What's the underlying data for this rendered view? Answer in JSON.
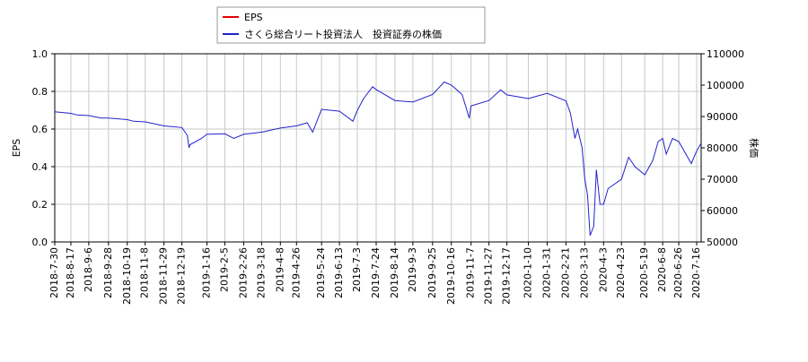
{
  "chart_data": {
    "type": "line",
    "y_label": "EPS",
    "y2_label": "株価",
    "x": [
      "2018-7-30",
      "2018-8-17",
      "2018-8-24",
      "2018-9-6",
      "2018-9-20",
      "2018-9-28",
      "2018-10-19",
      "2018-10-26",
      "2018-11-8",
      "2018-11-29",
      "2018-12-19",
      "2018-12-25",
      "2018-12-27",
      "2018-12-28",
      "2019-1-10",
      "2019-1-16",
      "2019-2-5",
      "2019-2-15",
      "2019-2-26",
      "2019-3-18",
      "2019-4-8",
      "2019-4-26",
      "2019-5-8",
      "2019-5-14",
      "2019-5-24",
      "2019-6-13",
      "2019-6-28",
      "2019-7-3",
      "2019-7-10",
      "2019-7-20",
      "2019-7-24",
      "2019-8-14",
      "2019-9-3",
      "2019-9-25",
      "2019-10-8",
      "2019-10-16",
      "2019-10-28",
      "2019-11-5",
      "2019-11-7",
      "2019-11-27",
      "2019-12-10",
      "2019-12-17",
      "2020-1-10",
      "2020-1-31",
      "2020-2-21",
      "2020-2-26",
      "2020-3-2",
      "2020-3-5",
      "2020-3-10",
      "2020-3-13",
      "2020-3-16",
      "2020-3-19",
      "2020-3-23",
      "2020-3-26",
      "2020-3-30",
      "2020-4-3",
      "2020-4-8",
      "2020-4-23",
      "2020-5-1",
      "2020-5-8",
      "2020-5-19",
      "2020-5-28",
      "2020-6-3",
      "2020-6-8",
      "2020-6-12",
      "2020-6-19",
      "2020-6-26",
      "2020-7-6",
      "2020-7-10",
      "2020-7-16",
      "2020-7-21"
    ],
    "series": [
      {
        "name": "EPS",
        "color": "#e00000",
        "axis": "y",
        "values": [
          null,
          null,
          null,
          null,
          null,
          null,
          null,
          null,
          null,
          null,
          null,
          null,
          null,
          null,
          null,
          null,
          null,
          null,
          null,
          null,
          null,
          null,
          null,
          null,
          null,
          null,
          null,
          null,
          null,
          null,
          null,
          null,
          null,
          null,
          null,
          null,
          null,
          null,
          null,
          null,
          null,
          null,
          null,
          null,
          null,
          null,
          null,
          null,
          null,
          null,
          null,
          null,
          null,
          null,
          null,
          null,
          null,
          null,
          null,
          null,
          null,
          null,
          null,
          null,
          null,
          null,
          null,
          null,
          null,
          null,
          null
        ]
      },
      {
        "name": "さくら総合リート投資法人　投資証券の株価",
        "color": "#2222cc",
        "axis": "y2",
        "values": [
          91500,
          91000,
          90500,
          90300,
          89500,
          89500,
          89000,
          88500,
          88300,
          87000,
          86500,
          84000,
          80000,
          81000,
          83000,
          84300,
          84500,
          83000,
          84300,
          85000,
          86300,
          87000,
          88000,
          85000,
          92300,
          91700,
          88500,
          92000,
          95700,
          99500,
          98600,
          95100,
          94600,
          97000,
          101000,
          100000,
          97000,
          89500,
          93400,
          95100,
          98500,
          96900,
          95700,
          97400,
          95000,
          91000,
          83000,
          86000,
          80000,
          70000,
          65000,
          52000,
          55000,
          73000,
          62000,
          62000,
          67000,
          70000,
          77000,
          74000,
          71400,
          76000,
          82000,
          83000,
          78000,
          83000,
          82000,
          77000,
          75000,
          79000,
          81500
        ]
      }
    ],
    "xlim": [
      "2018-7-30",
      "2020-7-21"
    ],
    "xticks": [
      "2018-7-30",
      "2018-8-17",
      "2018-9-6",
      "2018-9-28",
      "2018-10-19",
      "2018-11-8",
      "2018-11-29",
      "2018-12-19",
      "2019-1-16",
      "2019-2-5",
      "2019-2-26",
      "2019-3-18",
      "2019-4-8",
      "2019-4-26",
      "2019-5-24",
      "2019-6-13",
      "2019-7-3",
      "2019-7-24",
      "2019-8-14",
      "2019-9-3",
      "2019-9-25",
      "2019-10-16",
      "2019-11-7",
      "2019-11-27",
      "2019-12-17",
      "2020-1-10",
      "2020-1-31",
      "2020-2-21",
      "2020-3-13",
      "2020-4-3",
      "2020-4-23",
      "2020-5-19",
      "2020-6-8",
      "2020-6-26",
      "2020-7-16"
    ],
    "ylim": [
      0,
      1
    ],
    "yticks": [
      {
        "value": 0,
        "label": "0.0"
      },
      0.2,
      0.4,
      0.6,
      0.8,
      {
        "value": 1,
        "label": "1.0"
      }
    ],
    "y2lim": [
      50000,
      110000
    ],
    "y2ticks": [
      50000,
      60000,
      70000,
      80000,
      90000,
      100000,
      110000
    ],
    "grid": true,
    "legend": "top"
  }
}
